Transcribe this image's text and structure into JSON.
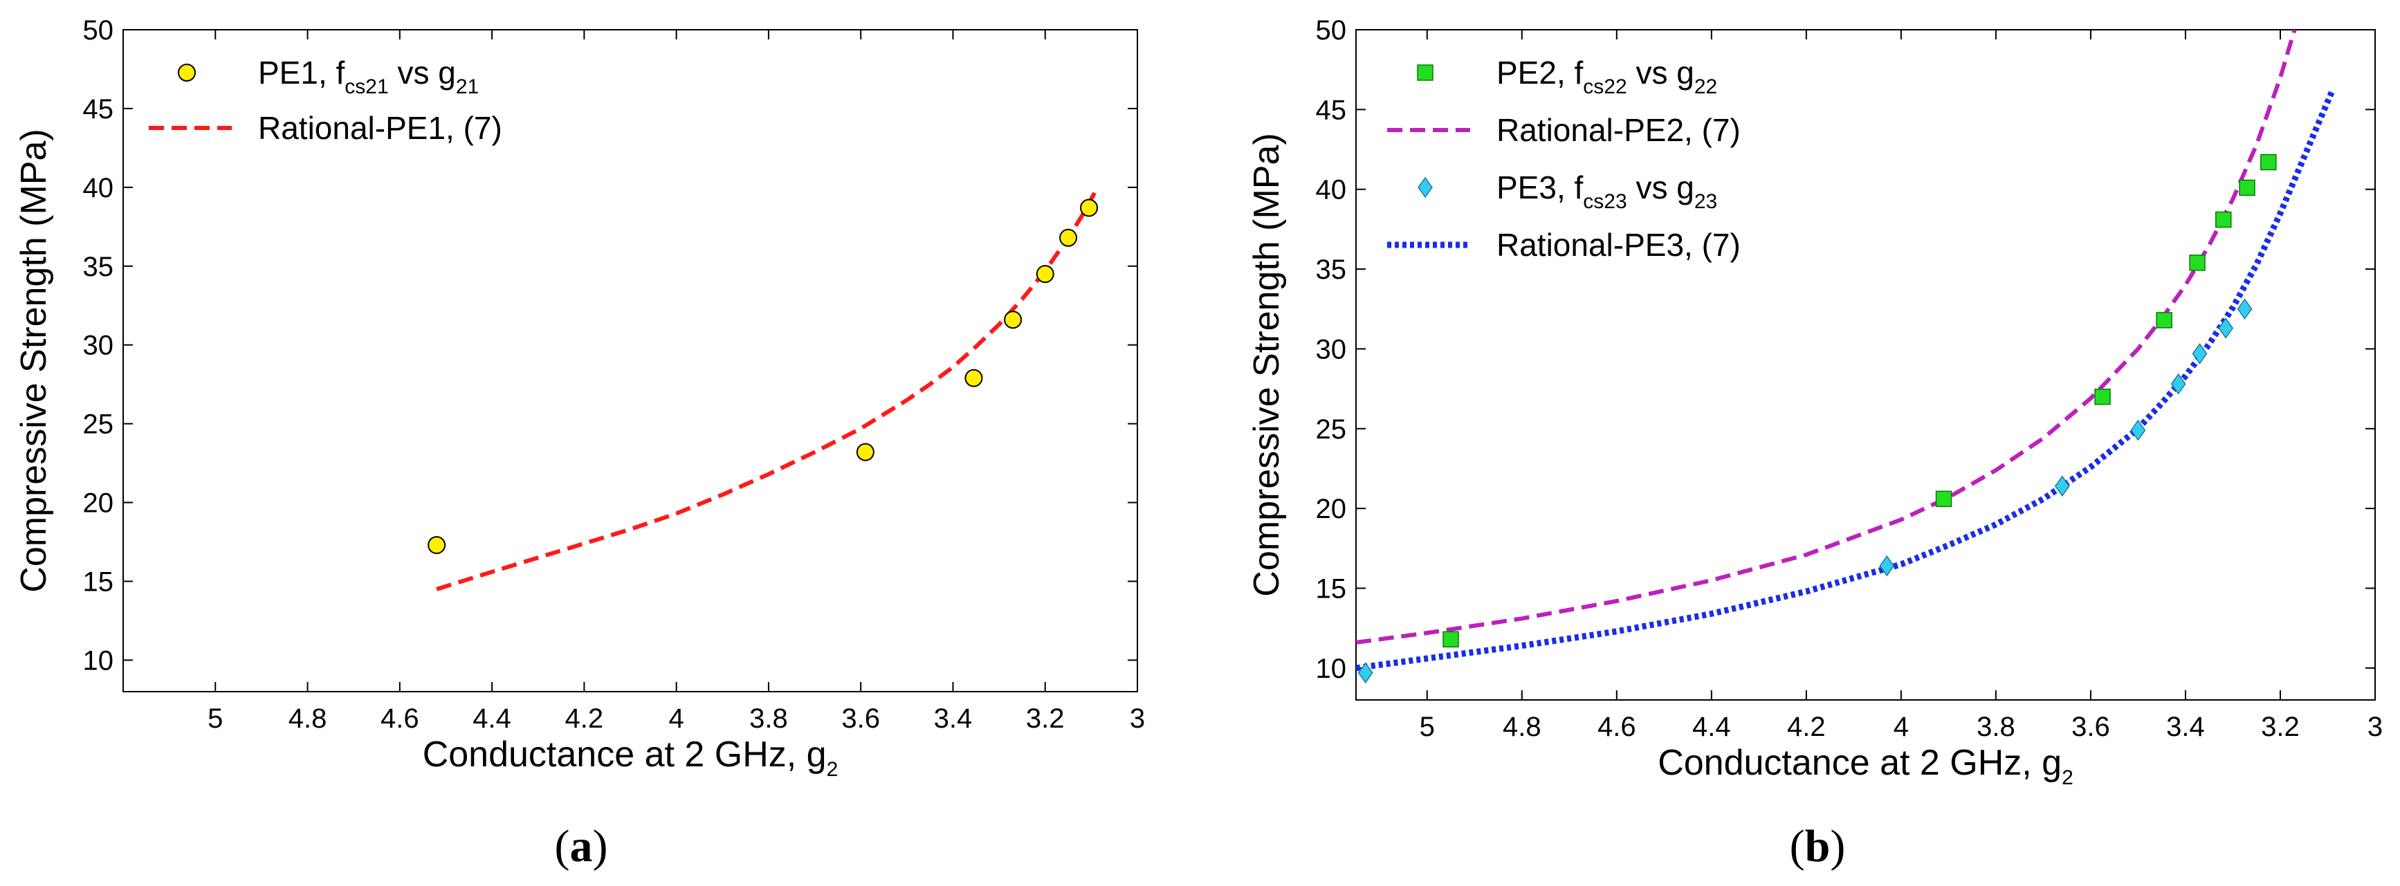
{
  "chart_data": [
    {
      "type": "scatter",
      "caption": "a",
      "xlabel": "Conductance at 2 GHz, g",
      "xlabel_sub": "2",
      "ylabel": "Compressive Strength (MPa)",
      "xlim": [
        5.2,
        3.0
      ],
      "ylim": [
        8,
        50
      ],
      "x_reversed": true,
      "xticks": [
        "5",
        "4.8",
        "4.6",
        "4.4",
        "4.2",
        "4",
        "3.8",
        "3.6",
        "3.4",
        "3.2",
        "3"
      ],
      "yticks": [
        "10",
        "15",
        "20",
        "25",
        "30",
        "35",
        "40",
        "45",
        "50"
      ],
      "grid": false,
      "legend_position": "top-left",
      "series": [
        {
          "name": "PE1, f",
          "name_sub": "cs21",
          "name_mid": " vs g",
          "name_sub2": "21",
          "kind": "points",
          "marker": "circle",
          "color": "#ffee00",
          "x": [
            4.52,
            3.59,
            3.355,
            3.27,
            3.2,
            3.15,
            3.105
          ],
          "y": [
            17.3,
            23.2,
            27.9,
            31.6,
            34.5,
            36.8,
            38.7
          ]
        },
        {
          "name": "Rational-PE1, (7)",
          "kind": "line",
          "style": "dashed",
          "color": "#ff1a1a",
          "x": [
            4.52,
            4.4,
            4.3,
            4.2,
            4.1,
            4.0,
            3.9,
            3.8,
            3.7,
            3.6,
            3.5,
            3.45,
            3.4,
            3.35,
            3.3,
            3.25,
            3.2,
            3.15,
            3.12,
            3.09
          ],
          "y": [
            14.5,
            15.6,
            16.5,
            17.4,
            18.3,
            19.3,
            20.5,
            21.8,
            23.2,
            24.7,
            26.5,
            27.5,
            28.6,
            29.9,
            31.3,
            32.9,
            34.7,
            36.8,
            38.2,
            39.8
          ]
        }
      ]
    },
    {
      "type": "scatter",
      "caption": "b",
      "xlabel": "Conductance at 2 GHz, g",
      "xlabel_sub": "2",
      "ylabel": "Compressive Strength (MPa)",
      "xlim": [
        5.15,
        3.0
      ],
      "ylim": [
        8,
        50
      ],
      "x_reversed": true,
      "xticks": [
        "5",
        "4.8",
        "4.6",
        "4.4",
        "4.2",
        "4",
        "3.8",
        "3.6",
        "3.4",
        "3.2",
        "3"
      ],
      "yticks": [
        "10",
        "15",
        "20",
        "25",
        "30",
        "35",
        "40",
        "45",
        "50"
      ],
      "grid": false,
      "legend_position": "top-left",
      "series": [
        {
          "name": "PE2, f",
          "name_sub": "cs22",
          "name_mid": " vs g",
          "name_sub2": "22",
          "kind": "points",
          "marker": "square",
          "color": "#22dd22",
          "x": [
            4.95,
            3.91,
            3.575,
            3.445,
            3.375,
            3.32,
            3.27,
            3.225
          ],
          "y": [
            11.8,
            20.6,
            27.0,
            31.8,
            35.4,
            38.1,
            40.1,
            41.7
          ]
        },
        {
          "name": "Rational-PE2, (7)",
          "kind": "line",
          "style": "dashed",
          "color": "#bb22bb",
          "x": [
            5.15,
            5.0,
            4.8,
            4.6,
            4.4,
            4.2,
            4.0,
            3.9,
            3.8,
            3.7,
            3.6,
            3.5,
            3.45,
            3.4,
            3.35,
            3.3,
            3.25,
            3.2,
            3.17
          ],
          "y": [
            11.6,
            12.2,
            13.1,
            14.2,
            15.5,
            17.1,
            19.3,
            20.7,
            22.4,
            24.4,
            26.9,
            30.0,
            31.9,
            34.0,
            36.5,
            39.4,
            42.8,
            47.0,
            50.0
          ]
        },
        {
          "name": "PE3, f",
          "name_sub": "cs23",
          "name_mid": " vs g",
          "name_sub2": "23",
          "kind": "points",
          "marker": "diamond",
          "color": "#33ccee",
          "x": [
            5.13,
            4.03,
            3.66,
            3.5,
            3.415,
            3.37,
            3.315,
            3.275
          ],
          "y": [
            9.7,
            16.4,
            21.4,
            24.9,
            27.8,
            29.7,
            31.3,
            32.5
          ]
        },
        {
          "name": "Rational-PE3, (7)",
          "kind": "line",
          "style": "dotted",
          "color": "#1a2ee6",
          "x": [
            5.15,
            5.0,
            4.8,
            4.6,
            4.4,
            4.2,
            4.0,
            3.9,
            3.8,
            3.7,
            3.6,
            3.5,
            3.45,
            3.4,
            3.35,
            3.3,
            3.25,
            3.2,
            3.15,
            3.09
          ],
          "y": [
            10.0,
            10.6,
            11.4,
            12.3,
            13.4,
            14.8,
            16.5,
            17.7,
            19.0,
            20.6,
            22.6,
            25.0,
            26.6,
            28.3,
            30.3,
            32.6,
            35.3,
            38.5,
            42.0,
            46.2
          ]
        }
      ]
    }
  ]
}
